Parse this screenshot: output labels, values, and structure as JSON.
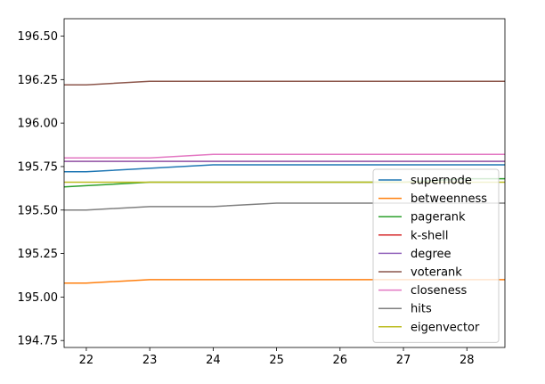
{
  "chart_data": {
    "type": "line",
    "x": [
      21,
      22,
      23,
      24,
      25,
      26,
      27,
      28,
      29
    ],
    "xlim": [
      21.65,
      28.6
    ],
    "ylim": [
      194.71,
      196.6
    ],
    "xticks": [
      22,
      23,
      24,
      25,
      26,
      27,
      28
    ],
    "yticks": [
      194.75,
      195.0,
      195.25,
      195.5,
      195.75,
      196.0,
      196.25,
      196.5
    ],
    "ytick_labels": [
      "194.75",
      "195.00",
      "195.25",
      "195.50",
      "195.75",
      "196.00",
      "196.25",
      "196.50"
    ],
    "xlabel": "",
    "ylabel": "",
    "title": "",
    "grid": false,
    "legend_position": "lower-right",
    "series": [
      {
        "name": "supernode",
        "color": "#1f77b4",
        "values": [
          195.72,
          195.72,
          195.74,
          195.76,
          195.76,
          195.76,
          195.76,
          195.76,
          195.76
        ]
      },
      {
        "name": "betweenness",
        "color": "#ff7f0e",
        "values": [
          195.08,
          195.08,
          195.1,
          195.1,
          195.1,
          195.1,
          195.1,
          195.1,
          195.1
        ]
      },
      {
        "name": "pagerank",
        "color": "#2ca02c",
        "values": [
          195.62,
          195.64,
          195.66,
          195.66,
          195.66,
          195.66,
          195.66,
          195.68,
          195.68
        ]
      },
      {
        "name": "k-shell",
        "color": "#d62728",
        "values": [
          195.78,
          195.78,
          195.78,
          195.78,
          195.78,
          195.78,
          195.78,
          195.78,
          195.78
        ]
      },
      {
        "name": "degree",
        "color": "#9467bd",
        "values": [
          195.78,
          195.78,
          195.78,
          195.78,
          195.78,
          195.78,
          195.78,
          195.78,
          195.78
        ]
      },
      {
        "name": "voterank",
        "color": "#8c564b",
        "values": [
          196.22,
          196.22,
          196.24,
          196.24,
          196.24,
          196.24,
          196.24,
          196.24,
          196.24
        ]
      },
      {
        "name": "closeness",
        "color": "#e377c2",
        "values": [
          195.8,
          195.8,
          195.8,
          195.82,
          195.82,
          195.82,
          195.82,
          195.82,
          195.82
        ]
      },
      {
        "name": "hits",
        "color": "#7f7f7f",
        "values": [
          195.5,
          195.5,
          195.52,
          195.52,
          195.54,
          195.54,
          195.54,
          195.54,
          195.54
        ]
      },
      {
        "name": "eigenvector",
        "color": "#bcbd22",
        "values": [
          195.66,
          195.66,
          195.66,
          195.66,
          195.66,
          195.66,
          195.66,
          195.66,
          195.66
        ]
      }
    ]
  }
}
